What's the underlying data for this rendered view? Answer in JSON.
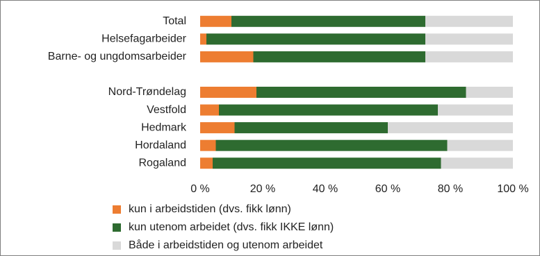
{
  "chart_data": {
    "type": "stacked_barh",
    "categories": [
      "Total",
      "Helsefagarbeider",
      "Barne- og ungdomsarbeider",
      null,
      "Nord-Trøndelag",
      "Vestfold",
      "Hedmark",
      "Hordaland",
      "Rogaland"
    ],
    "series": [
      {
        "name": "kun i arbeidstiden (dvs. fikk lønn)",
        "color": "#ed7d31",
        "values": [
          10,
          2,
          17,
          null,
          18,
          6,
          11,
          5,
          4
        ]
      },
      {
        "name": "kun utenom arbeidet (dvs. fikk IKKE lønn)",
        "color": "#2e6b30",
        "values": [
          62,
          70,
          55,
          null,
          67,
          70,
          49,
          74,
          73
        ]
      },
      {
        "name": "Både i arbeidstiden og utenom arbeidet",
        "color": "#d9d9d9",
        "values": [
          28,
          28,
          28,
          null,
          15,
          24,
          40,
          21,
          23
        ]
      }
    ],
    "xlim": [
      0,
      100
    ],
    "xticks": [
      {
        "value": 0,
        "label": "0 %"
      },
      {
        "value": 20,
        "label": "20 %"
      },
      {
        "value": 40,
        "label": "40 %"
      },
      {
        "value": 60,
        "label": "60 %"
      },
      {
        "value": 80,
        "label": "80 %"
      },
      {
        "value": 100,
        "label": "100 %"
      }
    ],
    "grid": false,
    "legend": "bottom"
  }
}
